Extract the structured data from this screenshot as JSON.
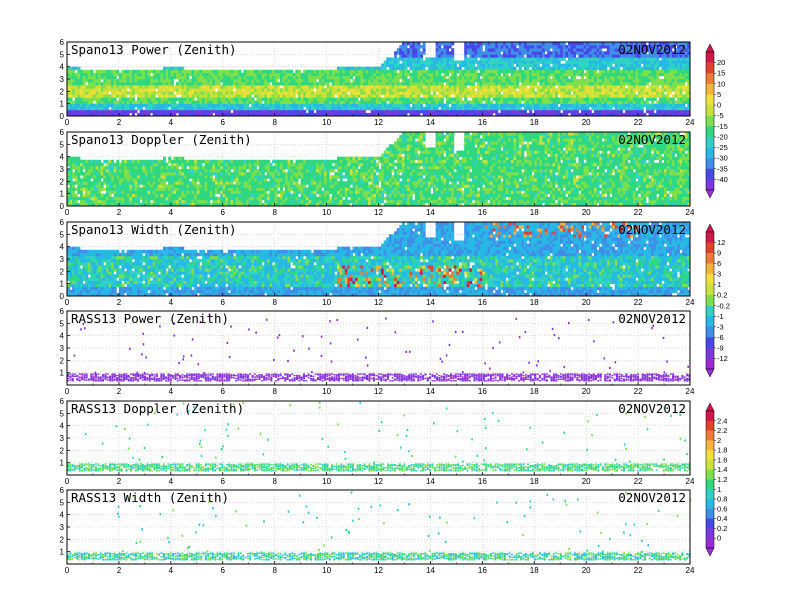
{
  "colors": {
    "palette": [
      "#9a2bd6",
      "#7a38e0",
      "#4848e8",
      "#3f8fe8",
      "#27b8e6",
      "#2ed3c4",
      "#2fd880",
      "#7de04a",
      "#c8e23a",
      "#efe03a",
      "#f3b43a",
      "#ef7a36",
      "#e5402e",
      "#d4144a"
    ]
  },
  "chart_data": [
    {
      "type": "heatmap",
      "title": "Spano13 Power (Zenith)",
      "date": "02NOV2012",
      "xlim": [
        0,
        24
      ],
      "ylim": [
        0,
        6
      ],
      "x_ticks": [
        "0",
        "2",
        "4",
        "6",
        "8",
        "10",
        "12",
        "14",
        "16",
        "18",
        "20",
        "22",
        "24"
      ],
      "y_ticks": [
        "0",
        "1",
        "2",
        "3",
        "4",
        "5",
        "6"
      ],
      "fill_top_by_hour": [
        [
          0,
          3.9
        ],
        [
          1,
          3.6
        ],
        [
          2,
          3.5
        ],
        [
          4,
          3.8
        ],
        [
          6,
          3.6
        ],
        [
          8,
          3.5
        ],
        [
          10,
          3.7
        ],
        [
          12,
          4.0
        ],
        [
          13,
          6.0
        ],
        [
          24,
          6.0
        ]
      ],
      "mode": "power"
    },
    {
      "type": "heatmap",
      "title": "Spano13 Doppler (Zenith)",
      "date": "02NOV2012",
      "xlim": [
        0,
        24
      ],
      "ylim": [
        0,
        6
      ],
      "x_ticks": [
        "0",
        "2",
        "4",
        "6",
        "8",
        "10",
        "12",
        "14",
        "16",
        "18",
        "20",
        "22",
        "24"
      ],
      "y_ticks": [
        "0",
        "1",
        "2",
        "3",
        "4",
        "5",
        "6"
      ],
      "fill_top_by_hour": [
        [
          0,
          3.9
        ],
        [
          1,
          3.6
        ],
        [
          2,
          3.5
        ],
        [
          4,
          3.8
        ],
        [
          6,
          3.6
        ],
        [
          8,
          3.5
        ],
        [
          10,
          3.7
        ],
        [
          12,
          4.0
        ],
        [
          13,
          6.0
        ],
        [
          24,
          6.0
        ]
      ],
      "mode": "doppler"
    },
    {
      "type": "heatmap",
      "title": "Spano13 Width (Zenith)",
      "date": "02NOV2012",
      "xlim": [
        0,
        24
      ],
      "ylim": [
        0,
        6
      ],
      "x_ticks": [
        "0",
        "2",
        "4",
        "6",
        "8",
        "10",
        "12",
        "14",
        "16",
        "18",
        "20",
        "22",
        "24"
      ],
      "y_ticks": [
        "0",
        "1",
        "2",
        "3",
        "4",
        "5",
        "6"
      ],
      "fill_top_by_hour": [
        [
          0,
          3.9
        ],
        [
          1,
          3.6
        ],
        [
          2,
          3.5
        ],
        [
          4,
          3.8
        ],
        [
          6,
          3.6
        ],
        [
          8,
          3.5
        ],
        [
          10,
          3.7
        ],
        [
          12,
          4.0
        ],
        [
          13,
          6.0
        ],
        [
          24,
          6.0
        ]
      ],
      "mode": "width"
    },
    {
      "type": "scatter",
      "title": "RASS13 Power (Zenith)",
      "date": "02NOV2012",
      "xlim": [
        0,
        24
      ],
      "ylim": [
        0,
        6
      ],
      "x_ticks": [
        "0",
        "2",
        "4",
        "6",
        "8",
        "10",
        "12",
        "14",
        "16",
        "18",
        "20",
        "22",
        "24"
      ],
      "y_ticks": [
        "1",
        "2",
        "3",
        "4",
        "5",
        "6"
      ],
      "band_height_range": [
        0.4,
        1.0
      ],
      "mode": "rass_power"
    },
    {
      "type": "scatter",
      "title": "RASS13 Doppler (Zenith)",
      "date": "02NOV2012",
      "xlim": [
        0,
        24
      ],
      "ylim": [
        0,
        6
      ],
      "x_ticks": [
        "0",
        "2",
        "4",
        "6",
        "8",
        "10",
        "12",
        "14",
        "16",
        "18",
        "20",
        "22",
        "24"
      ],
      "y_ticks": [
        "1",
        "2",
        "3",
        "4",
        "5",
        "6"
      ],
      "band_height_range": [
        0.4,
        1.0
      ],
      "mode": "rass_doppler"
    },
    {
      "type": "scatter",
      "title": "RASS13 Width (Zenith)",
      "date": "02NOV2012",
      "xlim": [
        0,
        24
      ],
      "ylim": [
        0,
        6
      ],
      "x_ticks": [
        "0",
        "2",
        "4",
        "6",
        "8",
        "10",
        "12",
        "14",
        "16",
        "18",
        "20",
        "22",
        "24"
      ],
      "y_ticks": [
        "1",
        "2",
        "3",
        "4",
        "5",
        "6"
      ],
      "band_height_range": [
        0.4,
        1.0
      ],
      "mode": "rass_width"
    }
  ],
  "colorbars": [
    {
      "panels": [
        0,
        1
      ],
      "labels": [
        "20",
        "15",
        "10",
        "5",
        "0",
        "-5",
        "-15",
        "-20",
        "-25",
        "-30",
        "-35",
        "-40"
      ]
    },
    {
      "panels": [
        2,
        3
      ],
      "labels": [
        "12",
        "9",
        "6",
        "3",
        "1",
        "0.2",
        "-0.2",
        "-1",
        "-3",
        "-6",
        "-9",
        "-12"
      ]
    },
    {
      "panels": [
        4,
        5
      ],
      "labels": [
        "2.4",
        "2.2",
        "2",
        "1.8",
        "1.6",
        "1.4",
        "1.2",
        "1",
        "0.8",
        "0.6",
        "0.4",
        "0.2",
        "0"
      ]
    }
  ]
}
